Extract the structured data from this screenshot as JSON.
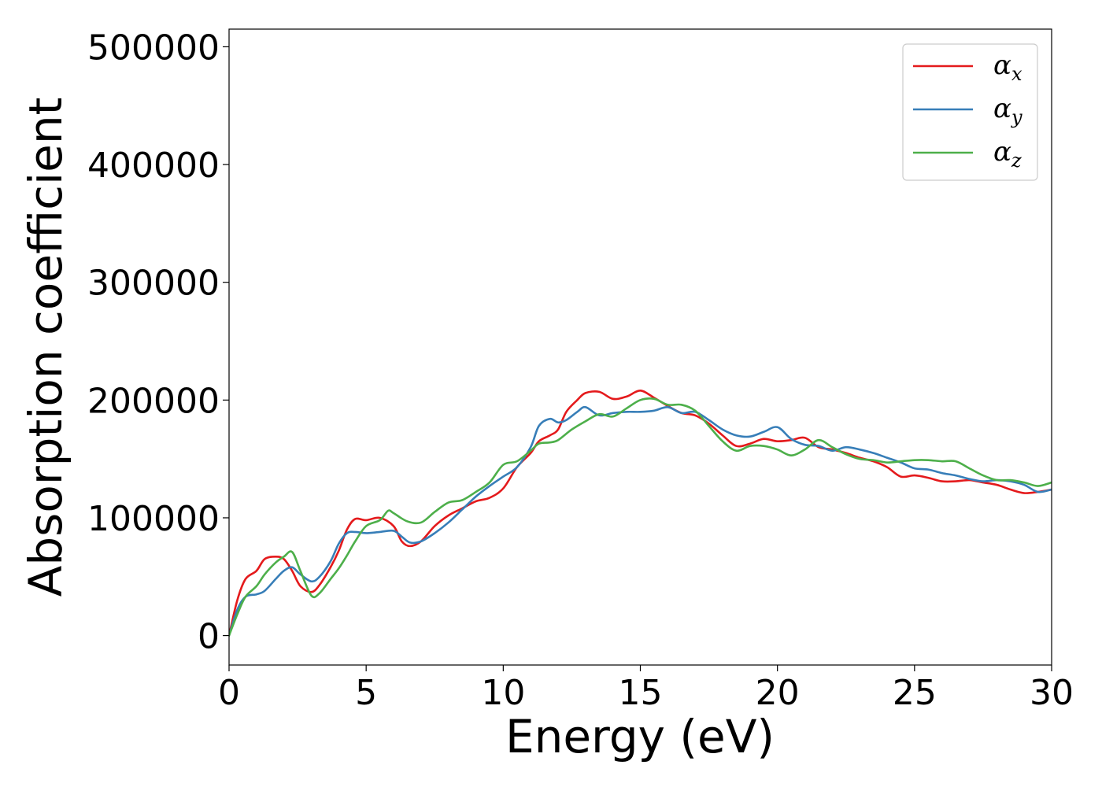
{
  "chart_data": {
    "type": "line",
    "xlabel": "Energy (eV)",
    "ylabel": "Absorption coefficient",
    "xlim": [
      0,
      30
    ],
    "ylim": [
      -25000,
      515000
    ],
    "xticks": [
      0,
      5,
      10,
      15,
      20,
      25,
      30
    ],
    "yticks": [
      0,
      100000,
      200000,
      300000,
      400000,
      500000
    ],
    "grid": false,
    "legend_position": "top-right",
    "series": [
      {
        "name": "α",
        "subscript": "x",
        "color": "#e41a1c",
        "points": [
          [
            0,
            0
          ],
          [
            0.3,
            30000
          ],
          [
            0.6,
            48000
          ],
          [
            1.0,
            55000
          ],
          [
            1.3,
            65000
          ],
          [
            1.7,
            67000
          ],
          [
            2.0,
            65000
          ],
          [
            2.3,
            55000
          ],
          [
            2.6,
            42000
          ],
          [
            3.0,
            37000
          ],
          [
            3.3,
            43000
          ],
          [
            3.7,
            58000
          ],
          [
            4.0,
            72000
          ],
          [
            4.3,
            90000
          ],
          [
            4.6,
            99000
          ],
          [
            5.0,
            98000
          ],
          [
            5.5,
            100000
          ],
          [
            6.0,
            93000
          ],
          [
            6.3,
            80000
          ],
          [
            6.6,
            76000
          ],
          [
            7.0,
            80000
          ],
          [
            7.5,
            93000
          ],
          [
            8.0,
            102000
          ],
          [
            8.5,
            108000
          ],
          [
            9.0,
            114000
          ],
          [
            9.5,
            117000
          ],
          [
            10.0,
            125000
          ],
          [
            10.5,
            143000
          ],
          [
            11.0,
            155000
          ],
          [
            11.3,
            165000
          ],
          [
            11.7,
            170000
          ],
          [
            12.0,
            175000
          ],
          [
            12.3,
            190000
          ],
          [
            12.7,
            200000
          ],
          [
            13.0,
            206000
          ],
          [
            13.5,
            207000
          ],
          [
            14.0,
            201000
          ],
          [
            14.5,
            203000
          ],
          [
            15.0,
            208000
          ],
          [
            15.5,
            202000
          ],
          [
            16.0,
            195000
          ],
          [
            16.5,
            189000
          ],
          [
            17.0,
            187000
          ],
          [
            17.5,
            180000
          ],
          [
            18.0,
            170000
          ],
          [
            18.5,
            161000
          ],
          [
            19.0,
            163000
          ],
          [
            19.5,
            167000
          ],
          [
            20.0,
            165000
          ],
          [
            20.5,
            166000
          ],
          [
            21.0,
            168000
          ],
          [
            21.5,
            160000
          ],
          [
            22.0,
            158000
          ],
          [
            22.5,
            155000
          ],
          [
            23.0,
            151000
          ],
          [
            23.5,
            148000
          ],
          [
            24.0,
            143000
          ],
          [
            24.5,
            135000
          ],
          [
            25.0,
            136000
          ],
          [
            25.5,
            134000
          ],
          [
            26.0,
            131000
          ],
          [
            26.5,
            131000
          ],
          [
            27.0,
            132000
          ],
          [
            27.5,
            130000
          ],
          [
            28.0,
            128000
          ],
          [
            28.5,
            124000
          ],
          [
            29.0,
            121000
          ],
          [
            29.5,
            122000
          ],
          [
            30.0,
            124000
          ]
        ]
      },
      {
        "name": "α",
        "subscript": "y",
        "color": "#377eb8",
        "points": [
          [
            0,
            0
          ],
          [
            0.3,
            22000
          ],
          [
            0.6,
            33000
          ],
          [
            1.0,
            35000
          ],
          [
            1.3,
            38000
          ],
          [
            1.7,
            48000
          ],
          [
            2.0,
            55000
          ],
          [
            2.3,
            58000
          ],
          [
            2.6,
            52000
          ],
          [
            3.0,
            46000
          ],
          [
            3.3,
            50000
          ],
          [
            3.7,
            63000
          ],
          [
            4.0,
            78000
          ],
          [
            4.3,
            87000
          ],
          [
            4.6,
            88000
          ],
          [
            5.0,
            87000
          ],
          [
            5.5,
            88000
          ],
          [
            6.0,
            89000
          ],
          [
            6.3,
            84000
          ],
          [
            6.6,
            79000
          ],
          [
            7.0,
            80000
          ],
          [
            7.5,
            87000
          ],
          [
            8.0,
            96000
          ],
          [
            8.5,
            107000
          ],
          [
            9.0,
            118000
          ],
          [
            9.5,
            127000
          ],
          [
            10.0,
            135000
          ],
          [
            10.5,
            143000
          ],
          [
            11.0,
            160000
          ],
          [
            11.3,
            178000
          ],
          [
            11.7,
            184000
          ],
          [
            12.0,
            181000
          ],
          [
            12.3,
            183000
          ],
          [
            12.7,
            190000
          ],
          [
            13.0,
            194000
          ],
          [
            13.5,
            187000
          ],
          [
            14.0,
            189000
          ],
          [
            14.5,
            190000
          ],
          [
            15.0,
            190000
          ],
          [
            15.5,
            191000
          ],
          [
            16.0,
            194000
          ],
          [
            16.5,
            189000
          ],
          [
            17.0,
            190000
          ],
          [
            17.5,
            183000
          ],
          [
            18.0,
            175000
          ],
          [
            18.5,
            170000
          ],
          [
            19.0,
            169000
          ],
          [
            19.5,
            173000
          ],
          [
            20.0,
            177000
          ],
          [
            20.5,
            167000
          ],
          [
            21.0,
            162000
          ],
          [
            21.5,
            161000
          ],
          [
            22.0,
            157000
          ],
          [
            22.5,
            160000
          ],
          [
            23.0,
            158000
          ],
          [
            23.5,
            155000
          ],
          [
            24.0,
            151000
          ],
          [
            24.5,
            147000
          ],
          [
            25.0,
            142000
          ],
          [
            25.5,
            141000
          ],
          [
            26.0,
            138000
          ],
          [
            26.5,
            136000
          ],
          [
            27.0,
            133000
          ],
          [
            27.5,
            131000
          ],
          [
            28.0,
            132000
          ],
          [
            28.5,
            131000
          ],
          [
            29.0,
            128000
          ],
          [
            29.5,
            122000
          ],
          [
            30.0,
            124000
          ]
        ]
      },
      {
        "name": "α",
        "subscript": "z",
        "color": "#4daf4a",
        "points": [
          [
            0,
            0
          ],
          [
            0.3,
            18000
          ],
          [
            0.6,
            33000
          ],
          [
            1.0,
            42000
          ],
          [
            1.3,
            52000
          ],
          [
            1.7,
            62000
          ],
          [
            2.0,
            67000
          ],
          [
            2.3,
            71000
          ],
          [
            2.6,
            55000
          ],
          [
            3.0,
            34000
          ],
          [
            3.3,
            36000
          ],
          [
            3.7,
            48000
          ],
          [
            4.0,
            57000
          ],
          [
            4.3,
            68000
          ],
          [
            4.6,
            80000
          ],
          [
            5.0,
            93000
          ],
          [
            5.5,
            98000
          ],
          [
            5.8,
            106000
          ],
          [
            6.0,
            104000
          ],
          [
            6.5,
            97000
          ],
          [
            7.0,
            96000
          ],
          [
            7.5,
            105000
          ],
          [
            8.0,
            113000
          ],
          [
            8.5,
            115000
          ],
          [
            9.0,
            122000
          ],
          [
            9.5,
            130000
          ],
          [
            10.0,
            145000
          ],
          [
            10.5,
            148000
          ],
          [
            11.0,
            157000
          ],
          [
            11.3,
            163000
          ],
          [
            11.7,
            164000
          ],
          [
            12.0,
            166000
          ],
          [
            12.5,
            175000
          ],
          [
            13.0,
            182000
          ],
          [
            13.5,
            188000
          ],
          [
            14.0,
            186000
          ],
          [
            14.5,
            193000
          ],
          [
            15.0,
            200000
          ],
          [
            15.5,
            201000
          ],
          [
            16.0,
            196000
          ],
          [
            16.5,
            196000
          ],
          [
            17.0,
            191000
          ],
          [
            17.5,
            178000
          ],
          [
            18.0,
            165000
          ],
          [
            18.5,
            157000
          ],
          [
            19.0,
            161000
          ],
          [
            19.5,
            161000
          ],
          [
            20.0,
            158000
          ],
          [
            20.5,
            153000
          ],
          [
            21.0,
            158000
          ],
          [
            21.5,
            166000
          ],
          [
            22.0,
            160000
          ],
          [
            22.5,
            154000
          ],
          [
            23.0,
            150000
          ],
          [
            23.5,
            149000
          ],
          [
            24.0,
            147000
          ],
          [
            24.5,
            148000
          ],
          [
            25.0,
            149000
          ],
          [
            25.5,
            149000
          ],
          [
            26.0,
            148000
          ],
          [
            26.5,
            148000
          ],
          [
            27.0,
            142000
          ],
          [
            27.5,
            136000
          ],
          [
            28.0,
            132000
          ],
          [
            28.5,
            132000
          ],
          [
            29.0,
            130000
          ],
          [
            29.5,
            127000
          ],
          [
            30.0,
            130000
          ]
        ]
      }
    ]
  }
}
